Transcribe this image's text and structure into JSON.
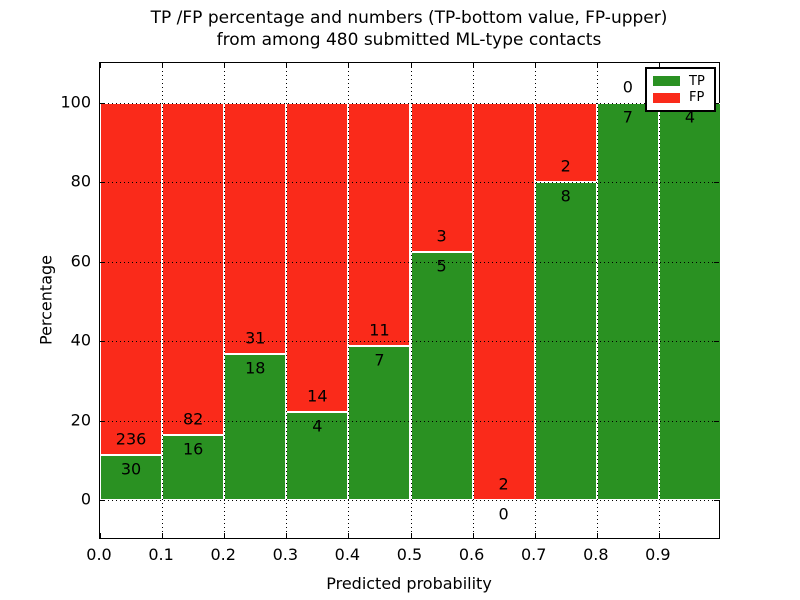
{
  "chart_data": {
    "type": "bar",
    "stacked": true,
    "normalized_to_percent": true,
    "title_line1": "TP /FP percentage and numbers (TP-bottom value, FP-upper)",
    "title_line2": "from among 480 submitted ML-type contacts",
    "xlabel": "Predicted probability",
    "ylabel": "Percentage",
    "x_tick_labels": [
      "0.0",
      "0.1",
      "0.2",
      "0.3",
      "0.4",
      "0.5",
      "0.6",
      "0.7",
      "0.8",
      "0.9"
    ],
    "y_ticks": [
      {
        "value": 0,
        "label": "0"
      },
      {
        "value": 20,
        "label": "20"
      },
      {
        "value": 40,
        "label": "40"
      },
      {
        "value": 60,
        "label": "60"
      },
      {
        "value": 80,
        "label": "80"
      },
      {
        "value": 100,
        "label": "100"
      }
    ],
    "xlim": [
      0.0,
      1.0
    ],
    "ylim": [
      -10,
      110
    ],
    "grid": "dotted, drawn above bars",
    "bins": [
      {
        "range": "0.0-0.1",
        "tp": 30,
        "fp": 236,
        "tp_label": "30",
        "fp_label": "236"
      },
      {
        "range": "0.1-0.2",
        "tp": 16,
        "fp": 82,
        "tp_label": "16",
        "fp_label": "82"
      },
      {
        "range": "0.2-0.3",
        "tp": 18,
        "fp": 31,
        "tp_label": "18",
        "fp_label": "31"
      },
      {
        "range": "0.3-0.4",
        "tp": 4,
        "fp": 14,
        "tp_label": "4",
        "fp_label": "14"
      },
      {
        "range": "0.4-0.5",
        "tp": 7,
        "fp": 11,
        "tp_label": "7",
        "fp_label": "11"
      },
      {
        "range": "0.5-0.6",
        "tp": 5,
        "fp": 3,
        "tp_label": "5",
        "fp_label": "3"
      },
      {
        "range": "0.6-0.7",
        "tp": 0,
        "fp": 2,
        "tp_label": "0",
        "fp_label": "2"
      },
      {
        "range": "0.7-0.8",
        "tp": 8,
        "fp": 2,
        "tp_label": "8",
        "fp_label": "2"
      },
      {
        "range": "0.8-0.9",
        "tp": 7,
        "fp": 0,
        "tp_label": "7",
        "fp_label": "0"
      },
      {
        "range": "0.9-1.0",
        "tp": 4,
        "fp": 0,
        "tp_label": "4",
        "fp_label": ""
      }
    ],
    "legend": {
      "position": "upper right",
      "entries": [
        {
          "label": "TP",
          "color": "#2a9122"
        },
        {
          "label": "FP",
          "color": "#fa2a1a"
        }
      ]
    },
    "colors": {
      "tp": "#2a9122",
      "fp": "#fa2a1a",
      "bar_edge": "#ffffff",
      "grid": "#000000",
      "frame": "#000000",
      "background": "#ffffff"
    }
  }
}
